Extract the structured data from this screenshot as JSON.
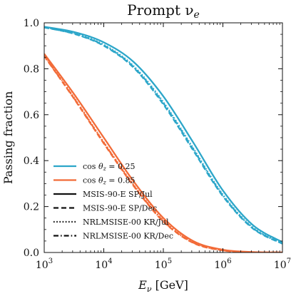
{
  "chart_data": {
    "type": "line",
    "title": "Prompt ν",
    "title_subscript": "e",
    "xlabel": "E",
    "xlabel_subscript": "ν",
    "xlabel_unit": "[GeV]",
    "ylabel": "Passing fraction",
    "xscale": "log",
    "xlim": [
      1000,
      10000000
    ],
    "ylim": [
      0.0,
      1.0
    ],
    "x_tick_labels": [
      {
        "base": "10",
        "exp": "3"
      },
      {
        "base": "10",
        "exp": "4"
      },
      {
        "base": "10",
        "exp": "5"
      },
      {
        "base": "10",
        "exp": "6"
      },
      {
        "base": "10",
        "exp": "7"
      }
    ],
    "y_tick_labels": [
      "0.0",
      "0.2",
      "0.4",
      "0.6",
      "0.8",
      "1.0"
    ],
    "legend_placement": "lower-left",
    "colors": {
      "cos025": "#2ca6c9",
      "cos085": "#f26b38",
      "axis": "#111111"
    },
    "legend": [
      {
        "label": "cos θz = 0.25",
        "kind": "color",
        "color": "#2ca6c9"
      },
      {
        "label": "cos θz = 0.85",
        "kind": "color",
        "color": "#f26b38"
      },
      {
        "label": "MSIS-90-E SP/Jul",
        "kind": "style",
        "dash": "solid"
      },
      {
        "label": "MSIS-90-E SP/Dec",
        "kind": "style",
        "dash": "dashed"
      },
      {
        "label": "NRLMSISE-00 KR/Jul",
        "kind": "style",
        "dash": "dotted"
      },
      {
        "label": "NRLMSISE-00 KR/Dec",
        "kind": "style",
        "dash": "dashdot"
      }
    ],
    "x": [
      1000,
      3162,
      10000,
      31623,
      100000,
      316228,
      1000000,
      3162278,
      10000000
    ],
    "series": [
      {
        "name": "cos θz = 0.25, MSIS-90-E SP/Jul",
        "color": "#2ca6c9",
        "dash": "solid",
        "values": [
          0.983,
          0.96,
          0.915,
          0.83,
          0.68,
          0.48,
          0.27,
          0.12,
          0.045
        ]
      },
      {
        "name": "cos θz = 0.25, MSIS-90-E SP/Dec",
        "color": "#2ca6c9",
        "dash": "dashed",
        "values": [
          0.98,
          0.952,
          0.9,
          0.805,
          0.645,
          0.445,
          0.245,
          0.105,
          0.038
        ]
      },
      {
        "name": "cos θz = 0.25, NRLMSISE-00 KR/Jul",
        "color": "#2ca6c9",
        "dash": "dotted",
        "values": [
          0.981,
          0.955,
          0.905,
          0.812,
          0.655,
          0.455,
          0.252,
          0.11,
          0.04
        ]
      },
      {
        "name": "cos θz = 0.25, NRLMSISE-00 KR/Dec",
        "color": "#2ca6c9",
        "dash": "dashdot",
        "values": [
          0.98,
          0.953,
          0.902,
          0.808,
          0.65,
          0.45,
          0.248,
          0.107,
          0.039
        ]
      },
      {
        "name": "cos θz = 0.85, MSIS-90-E SP/Jul",
        "color": "#f26b38",
        "dash": "solid",
        "values": [
          0.865,
          0.69,
          0.5,
          0.31,
          0.15,
          0.05,
          0.012,
          0.002,
          0.0
        ]
      },
      {
        "name": "cos θz = 0.85, MSIS-90-E SP/Dec",
        "color": "#f26b38",
        "dash": "dashed",
        "values": [
          0.855,
          0.67,
          0.475,
          0.29,
          0.135,
          0.042,
          0.009,
          0.001,
          0.0
        ]
      },
      {
        "name": "cos θz = 0.85, NRLMSISE-00 KR/Jul",
        "color": "#f26b38",
        "dash": "dotted",
        "values": [
          0.858,
          0.675,
          0.48,
          0.295,
          0.14,
          0.045,
          0.01,
          0.0015,
          0.0
        ]
      },
      {
        "name": "cos θz = 0.85, NRLMSISE-00 KR/Dec",
        "color": "#f26b38",
        "dash": "dashdot",
        "values": [
          0.856,
          0.672,
          0.478,
          0.292,
          0.137,
          0.043,
          0.0095,
          0.0012,
          0.0
        ]
      }
    ]
  }
}
